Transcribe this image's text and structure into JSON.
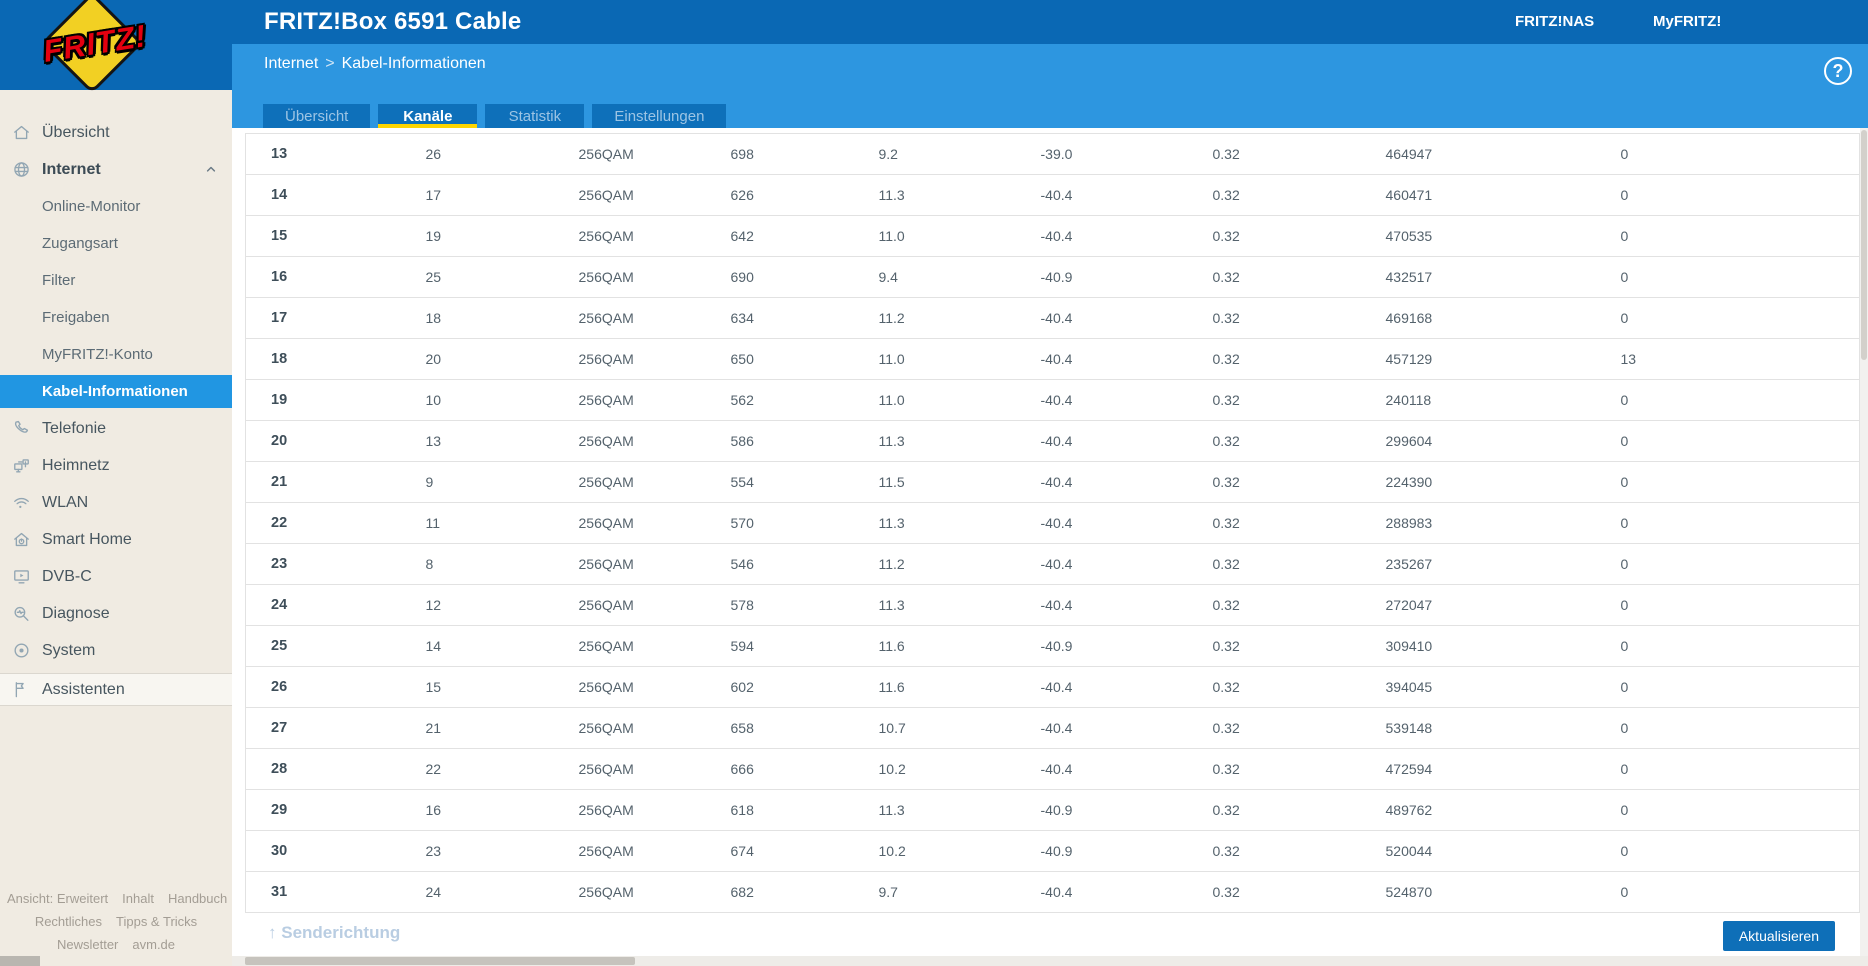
{
  "header": {
    "title": "FRITZ!Box 6591 Cable",
    "logo_text": "FRITZ!",
    "links": [
      "FRITZ!NAS",
      "MyFRITZ!"
    ]
  },
  "breadcrumb": {
    "section": "Internet",
    "separator": ">",
    "page": "Kabel-Informationen"
  },
  "help_icon": "?",
  "tabs": [
    {
      "label": "Übersicht",
      "active": false
    },
    {
      "label": "Kanäle",
      "active": true
    },
    {
      "label": "Statistik",
      "active": false
    },
    {
      "label": "Einstellungen",
      "active": false
    }
  ],
  "sidebar": {
    "items": [
      {
        "label": "Übersicht",
        "icon": "home-icon",
        "type": "main"
      },
      {
        "label": "Internet",
        "icon": "globe-icon",
        "type": "main",
        "bold": true,
        "expanded": true
      },
      {
        "label": "Online-Monitor",
        "type": "sub"
      },
      {
        "label": "Zugangsart",
        "type": "sub"
      },
      {
        "label": "Filter",
        "type": "sub"
      },
      {
        "label": "Freigaben",
        "type": "sub"
      },
      {
        "label": "MyFRITZ!-Konto",
        "type": "sub"
      },
      {
        "label": "Kabel-Informationen",
        "type": "sub",
        "active": true
      },
      {
        "label": "Telefonie",
        "icon": "phone-icon",
        "type": "main"
      },
      {
        "label": "Heimnetz",
        "icon": "network-icon",
        "type": "main"
      },
      {
        "label": "WLAN",
        "icon": "wifi-icon",
        "type": "main"
      },
      {
        "label": "Smart Home",
        "icon": "smarthome-icon",
        "type": "main"
      },
      {
        "label": "DVB-C",
        "icon": "tv-icon",
        "type": "main"
      },
      {
        "label": "Diagnose",
        "icon": "diagnose-icon",
        "type": "main"
      },
      {
        "label": "System",
        "icon": "system-icon",
        "type": "main"
      },
      {
        "label": "Assistenten",
        "icon": "assistant-icon",
        "type": "main",
        "band": true
      }
    ],
    "footer_links": [
      [
        "Ansicht: Erweitert",
        "Inhalt",
        "Handbuch"
      ],
      [
        "Rechtliches",
        "Tipps & Tricks"
      ],
      [
        "Newsletter",
        "avm.de"
      ]
    ]
  },
  "table": {
    "rows": [
      [
        "13",
        "26",
        "256QAM",
        "698",
        "9.2",
        "-39.0",
        "0.32",
        "464947",
        "0"
      ],
      [
        "14",
        "17",
        "256QAM",
        "626",
        "11.3",
        "-40.4",
        "0.32",
        "460471",
        "0"
      ],
      [
        "15",
        "19",
        "256QAM",
        "642",
        "11.0",
        "-40.4",
        "0.32",
        "470535",
        "0"
      ],
      [
        "16",
        "25",
        "256QAM",
        "690",
        "9.4",
        "-40.9",
        "0.32",
        "432517",
        "0"
      ],
      [
        "17",
        "18",
        "256QAM",
        "634",
        "11.2",
        "-40.4",
        "0.32",
        "469168",
        "0"
      ],
      [
        "18",
        "20",
        "256QAM",
        "650",
        "11.0",
        "-40.4",
        "0.32",
        "457129",
        "13"
      ],
      [
        "19",
        "10",
        "256QAM",
        "562",
        "11.0",
        "-40.4",
        "0.32",
        "240118",
        "0"
      ],
      [
        "20",
        "13",
        "256QAM",
        "586",
        "11.3",
        "-40.4",
        "0.32",
        "299604",
        "0"
      ],
      [
        "21",
        "9",
        "256QAM",
        "554",
        "11.5",
        "-40.4",
        "0.32",
        "224390",
        "0"
      ],
      [
        "22",
        "11",
        "256QAM",
        "570",
        "11.3",
        "-40.4",
        "0.32",
        "288983",
        "0"
      ],
      [
        "23",
        "8",
        "256QAM",
        "546",
        "11.2",
        "-40.4",
        "0.32",
        "235267",
        "0"
      ],
      [
        "24",
        "12",
        "256QAM",
        "578",
        "11.3",
        "-40.4",
        "0.32",
        "272047",
        "0"
      ],
      [
        "25",
        "14",
        "256QAM",
        "594",
        "11.6",
        "-40.9",
        "0.32",
        "309410",
        "0"
      ],
      [
        "26",
        "15",
        "256QAM",
        "602",
        "11.6",
        "-40.4",
        "0.32",
        "394045",
        "0"
      ],
      [
        "27",
        "21",
        "256QAM",
        "658",
        "10.7",
        "-40.4",
        "0.32",
        "539148",
        "0"
      ],
      [
        "28",
        "22",
        "256QAM",
        "666",
        "10.2",
        "-40.4",
        "0.32",
        "472594",
        "0"
      ],
      [
        "29",
        "16",
        "256QAM",
        "618",
        "11.3",
        "-40.9",
        "0.32",
        "489762",
        "0"
      ],
      [
        "30",
        "23",
        "256QAM",
        "674",
        "10.2",
        "-40.9",
        "0.32",
        "520044",
        "0"
      ],
      [
        "31",
        "24",
        "256QAM",
        "682",
        "9.7",
        "-40.4",
        "0.32",
        "524870",
        "0"
      ]
    ]
  },
  "section_footer": {
    "arrow": "↑",
    "label": "Senderichtung",
    "refresh_button": "Aktualisieren"
  },
  "colors": {
    "header_blue": "#0a68b4",
    "band_blue": "#2d96e0",
    "tab_blue": "#0e70ba",
    "active_item_blue": "#2196e2",
    "accent_yellow": "#fed500",
    "logo_yellow": "#f2d023",
    "logo_red": "#e3000f",
    "sidebar_beige": "#f0ebe2",
    "button_blue": "#0e6fb8"
  }
}
